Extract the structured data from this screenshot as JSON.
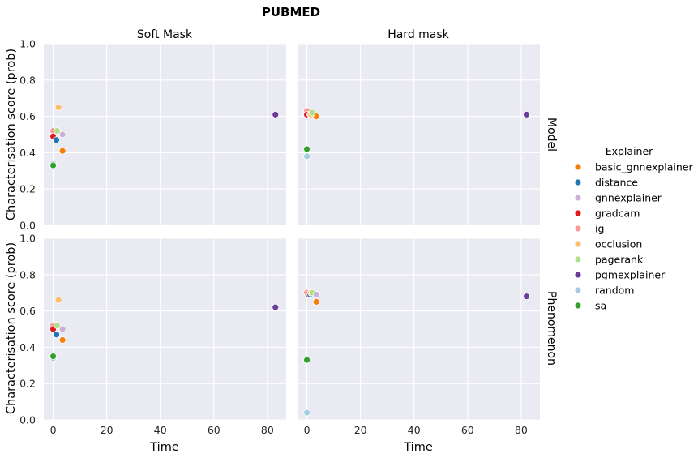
{
  "chart_data": {
    "type": "scatter",
    "title": "PUBMED",
    "col_titles": [
      "Soft Mask",
      "Hard mask"
    ],
    "row_titles": [
      "Model",
      "Phenomenon"
    ],
    "xlabel": "Time",
    "ylabel": "Characterisation score (prob)",
    "xlim": [
      -3.5,
      87
    ],
    "ylim": [
      0,
      1.0
    ],
    "xticks": [
      0,
      20,
      40,
      60,
      80
    ],
    "yticks": [
      0.0,
      0.2,
      0.4,
      0.6,
      0.8,
      1.0
    ],
    "legend": {
      "title": "Explainer",
      "placement": "right",
      "entries": [
        {
          "name": "basic_gnnexplainer",
          "color": "#f57f0a"
        },
        {
          "name": "distance",
          "color": "#1f78b4"
        },
        {
          "name": "gnnexplainer",
          "color": "#cab2d6"
        },
        {
          "name": "gradcam",
          "color": "#e31a1c"
        },
        {
          "name": "ig",
          "color": "#fb9a99"
        },
        {
          "name": "occlusion",
          "color": "#fdbf6f"
        },
        {
          "name": "pagerank",
          "color": "#b2df8a"
        },
        {
          "name": "pgmexplainer",
          "color": "#6a3d9a"
        },
        {
          "name": "random",
          "color": "#a6cee3"
        },
        {
          "name": "sa",
          "color": "#33a02c"
        }
      ]
    },
    "panels": [
      {
        "row": "Model",
        "col": "Soft Mask",
        "points": [
          {
            "explainer": "ig",
            "x": 0.0,
            "y": 0.52
          },
          {
            "explainer": "gradcam",
            "x": 0.0,
            "y": 0.49
          },
          {
            "explainer": "gnnexplainer",
            "x": 3.5,
            "y": 0.5
          },
          {
            "explainer": "distance",
            "x": 1.2,
            "y": 0.47
          },
          {
            "explainer": "pagerank",
            "x": 1.5,
            "y": 0.52
          },
          {
            "explainer": "occlusion",
            "x": 2.0,
            "y": 0.65
          },
          {
            "explainer": "basic_gnnexplainer",
            "x": 3.5,
            "y": 0.41
          },
          {
            "explainer": "random",
            "x": 0.0,
            "y": 0.34
          },
          {
            "explainer": "sa",
            "x": 0.0,
            "y": 0.33
          },
          {
            "explainer": "pgmexplainer",
            "x": 83.0,
            "y": 0.61
          }
        ]
      },
      {
        "row": "Model",
        "col": "Hard mask",
        "points": [
          {
            "explainer": "ig",
            "x": 0.0,
            "y": 0.63
          },
          {
            "explainer": "gradcam",
            "x": 0.0,
            "y": 0.61
          },
          {
            "explainer": "gnnexplainer",
            "x": 3.5,
            "y": 0.6
          },
          {
            "explainer": "basic_gnnexplainer",
            "x": 3.5,
            "y": 0.6
          },
          {
            "explainer": "distance",
            "x": 1.2,
            "y": 0.61
          },
          {
            "explainer": "occlusion",
            "x": 1.5,
            "y": 0.61
          },
          {
            "explainer": "pagerank",
            "x": 2.0,
            "y": 0.62
          },
          {
            "explainer": "sa",
            "x": 0.0,
            "y": 0.42
          },
          {
            "explainer": "random",
            "x": 0.0,
            "y": 0.38
          },
          {
            "explainer": "pgmexplainer",
            "x": 82.0,
            "y": 0.61
          }
        ]
      },
      {
        "row": "Phenomenon",
        "col": "Soft Mask",
        "points": [
          {
            "explainer": "ig",
            "x": 0.0,
            "y": 0.52
          },
          {
            "explainer": "gradcam",
            "x": 0.0,
            "y": 0.5
          },
          {
            "explainer": "gnnexplainer",
            "x": 3.5,
            "y": 0.5
          },
          {
            "explainer": "distance",
            "x": 1.2,
            "y": 0.47
          },
          {
            "explainer": "pagerank",
            "x": 1.5,
            "y": 0.52
          },
          {
            "explainer": "occlusion",
            "x": 2.0,
            "y": 0.66
          },
          {
            "explainer": "basic_gnnexplainer",
            "x": 3.5,
            "y": 0.44
          },
          {
            "explainer": "random",
            "x": 0.0,
            "y": 0.34
          },
          {
            "explainer": "sa",
            "x": 0.0,
            "y": 0.35
          },
          {
            "explainer": "pgmexplainer",
            "x": 83.0,
            "y": 0.62
          }
        ]
      },
      {
        "row": "Phenomenon",
        "col": "Hard mask",
        "points": [
          {
            "explainer": "ig",
            "x": 0.0,
            "y": 0.7
          },
          {
            "explainer": "gradcam",
            "x": 0.5,
            "y": 0.69
          },
          {
            "explainer": "distance",
            "x": 1.2,
            "y": 0.69
          },
          {
            "explainer": "occlusion",
            "x": 1.5,
            "y": 0.7
          },
          {
            "explainer": "pagerank",
            "x": 2.0,
            "y": 0.7
          },
          {
            "explainer": "gnnexplainer",
            "x": 3.5,
            "y": 0.69
          },
          {
            "explainer": "basic_gnnexplainer",
            "x": 3.5,
            "y": 0.65
          },
          {
            "explainer": "sa",
            "x": 0.0,
            "y": 0.33
          },
          {
            "explainer": "random",
            "x": 0.0,
            "y": 0.04
          },
          {
            "explainer": "pgmexplainer",
            "x": 82.0,
            "y": 0.68
          }
        ]
      }
    ],
    "grid": true
  }
}
